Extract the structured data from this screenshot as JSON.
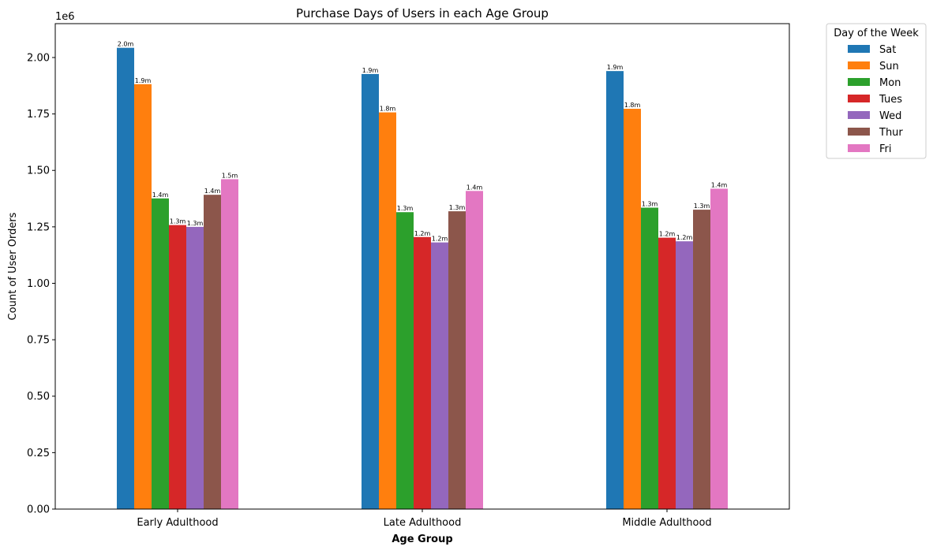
{
  "chart_data": {
    "type": "bar",
    "title": "Purchase Days of Users in each Age Group",
    "xlabel": "Age Group",
    "ylabel": "Count of User Orders",
    "y_offset_label": "1e6",
    "ylim": [
      0,
      2150000
    ],
    "yticks": [
      0,
      250000,
      500000,
      750000,
      1000000,
      1250000,
      1500000,
      1750000,
      2000000
    ],
    "ytick_labels": [
      "0.00",
      "0.25",
      "0.50",
      "0.75",
      "1.00",
      "1.25",
      "1.50",
      "1.75",
      "2.00"
    ],
    "grid": false,
    "categories": [
      "Early Adulthood",
      "Late Adulthood",
      "Middle Adulthood"
    ],
    "legend": {
      "title": "Day of the Week",
      "placement": "outside-right-top"
    },
    "series": [
      {
        "name": "Sat",
        "color": "#1f77b4",
        "values": [
          2043000,
          1927000,
          1940000
        ],
        "labels": [
          "2.0m",
          "1.9m",
          "1.9m"
        ]
      },
      {
        "name": "Sun",
        "color": "#ff7f0e",
        "values": [
          1882000,
          1757000,
          1773000
        ],
        "labels": [
          "1.9m",
          "1.8m",
          "1.8m"
        ]
      },
      {
        "name": "Mon",
        "color": "#2ca02c",
        "values": [
          1376000,
          1315000,
          1335000
        ],
        "labels": [
          "1.4m",
          "1.3m",
          "1.3m"
        ]
      },
      {
        "name": "Tues",
        "color": "#d62728",
        "values": [
          1258000,
          1205000,
          1202000
        ],
        "labels": [
          "1.3m",
          "1.2m",
          "1.2m"
        ]
      },
      {
        "name": "Wed",
        "color": "#9467bd",
        "values": [
          1250000,
          1181000,
          1186000
        ],
        "labels": [
          "1.3m",
          "1.2m",
          "1.2m"
        ]
      },
      {
        "name": "Thur",
        "color": "#8c564b",
        "values": [
          1392000,
          1319000,
          1326000
        ],
        "labels": [
          "1.4m",
          "1.3m",
          "1.3m"
        ]
      },
      {
        "name": "Fri",
        "color": "#e377c2",
        "values": [
          1461000,
          1409000,
          1419000
        ],
        "labels": [
          "1.5m",
          "1.4m",
          "1.4m"
        ]
      }
    ]
  }
}
